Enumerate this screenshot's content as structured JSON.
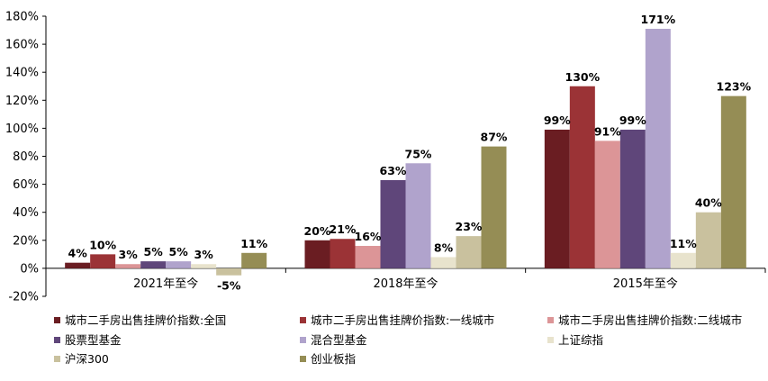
{
  "chart_data": {
    "type": "bar",
    "title": "",
    "xlabel": "",
    "ylabel": "",
    "ylim": [
      -0.2,
      1.8
    ],
    "y_ticks": [
      "-20%",
      "0%",
      "20%",
      "40%",
      "60%",
      "80%",
      "100%",
      "120%",
      "140%",
      "160%",
      "180%"
    ],
    "grid": false,
    "legend_position": "bottom",
    "categories": [
      "2021年至今",
      "2018年至今",
      "2015年至今"
    ],
    "series": [
      {
        "name": "城市二手房出售挂牌价指数:全国",
        "color": "#6a1d22",
        "values": [
          0.04,
          0.2,
          0.99
        ],
        "labels": [
          "4%",
          "20%",
          "99%"
        ]
      },
      {
        "name": "城市二手房出售挂牌价指数:一线城市",
        "color": "#9b3336",
        "values": [
          0.1,
          0.21,
          1.3
        ],
        "labels": [
          "10%",
          "21%",
          "130%"
        ]
      },
      {
        "name": "城市二手房出售挂牌价指数:二线城市",
        "color": "#dc9597",
        "values": [
          0.03,
          0.16,
          0.91
        ],
        "labels": [
          "3%",
          "16%",
          "91%"
        ]
      },
      {
        "name": "股票型基金",
        "color": "#5f467a",
        "values": [
          0.05,
          0.63,
          0.99
        ],
        "labels": [
          "5%",
          "63%",
          "99%"
        ]
      },
      {
        "name": "混合型基金",
        "color": "#b0a3cc",
        "values": [
          0.05,
          0.75,
          1.71
        ],
        "labels": [
          "5%",
          "75%",
          "171%"
        ]
      },
      {
        "name": "上证综指",
        "color": "#e8e3cd",
        "values": [
          0.03,
          0.08,
          0.11
        ],
        "labels": [
          "3%",
          "8%",
          "11%"
        ]
      },
      {
        "name": "沪深300",
        "color": "#c9c19e",
        "values": [
          -0.05,
          0.23,
          0.4
        ],
        "labels": [
          "-5%",
          "23%",
          "40%"
        ]
      },
      {
        "name": "创业板指",
        "color": "#958d55",
        "values": [
          0.11,
          0.87,
          1.23
        ],
        "labels": [
          "11%",
          "87%",
          "123%"
        ]
      }
    ]
  }
}
